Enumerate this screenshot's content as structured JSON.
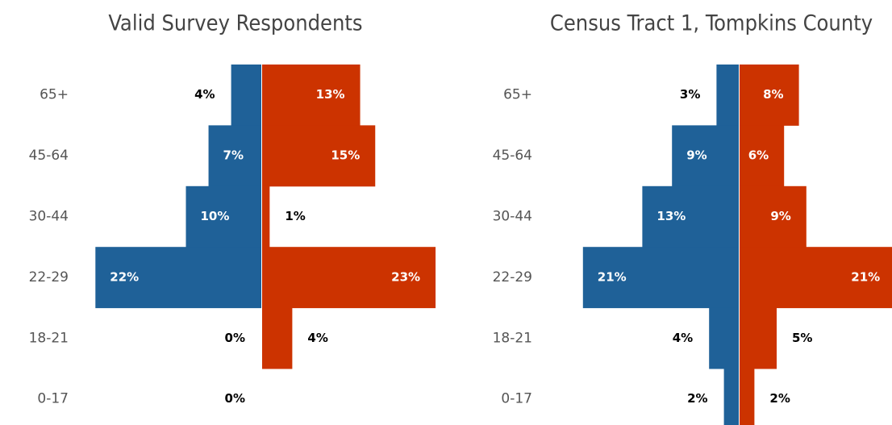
{
  "chart_data": [
    {
      "type": "pyramid",
      "title": "Valid Survey Respondents",
      "categories": [
        "65+",
        "45-64",
        "30-44",
        "22-29",
        "18-21",
        "0-17"
      ],
      "series": [
        {
          "color": "#1f6198",
          "values": [
            4,
            7,
            10,
            22,
            0,
            0
          ],
          "value_labels": [
            "4%",
            "7%",
            "10%",
            "22%",
            "0%",
            "0%"
          ]
        },
        {
          "color": "#cc3300",
          "values": [
            13,
            15,
            1,
            23,
            4,
            null
          ],
          "value_labels": [
            "13%",
            "15%",
            "1%",
            "23%",
            "4%",
            null
          ]
        }
      ]
    },
    {
      "type": "pyramid",
      "title": "Census Tract 1, Tompkins County",
      "categories": [
        "65+",
        "45-64",
        "30-44",
        "22-29",
        "18-21",
        "0-17"
      ],
      "series": [
        {
          "color": "#1f6198",
          "values": [
            3,
            9,
            13,
            21,
            4,
            2
          ],
          "value_labels": [
            "3%",
            "9%",
            "13%",
            "21%",
            "4%",
            "2%"
          ]
        },
        {
          "color": "#cc3300",
          "values": [
            8,
            6,
            9,
            21,
            5,
            2
          ],
          "value_labels": [
            "8%",
            "6%",
            "9%",
            "21%",
            "5%",
            "2%"
          ]
        }
      ]
    }
  ]
}
